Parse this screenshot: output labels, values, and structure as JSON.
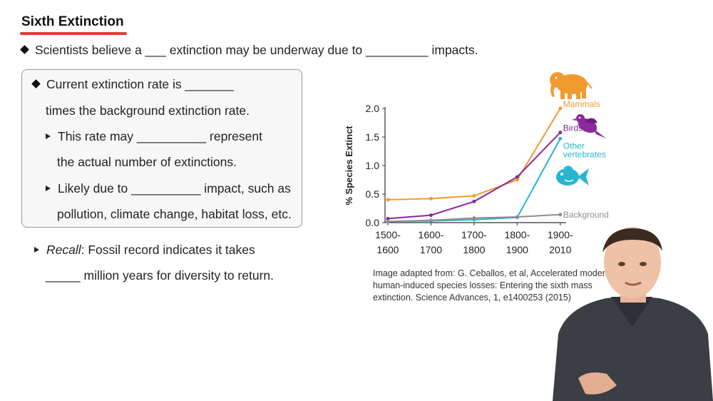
{
  "slide": {
    "title": "Sixth Extinction",
    "line1": "Scientists believe a ___ extinction may be underway due to _________ impacts.",
    "box": {
      "b1a": "Current extinction rate is _______",
      "b1b": "times the background extinction rate.",
      "s1a": "This rate may __________ represent",
      "s1b": "the actual number of extinctions.",
      "s2a": "Likely due to __________ impact, such as",
      "s2b": "pollution, climate change, habitat loss, etc."
    },
    "recall_label": "Recall",
    "recall_rest": ": Fossil record indicates it takes",
    "recall_line2": "_____ million years for diversity to return.",
    "caption": [
      "Image adapted from: G. Ceballos, et al, Accelerated modern",
      "human-induced species losses: Entering the sixth mass",
      "extinction. Science Advances, 1, e1400253 (2015)"
    ]
  },
  "chart_data": {
    "type": "line",
    "title": "",
    "xlabel": "",
    "ylabel": "% Species Extinct",
    "categories": [
      [
        "1500-",
        "1600"
      ],
      [
        "1600-",
        "1700"
      ],
      [
        "1700-",
        "1800"
      ],
      [
        "1800-",
        "1900"
      ],
      [
        "1900-",
        "2010"
      ]
    ],
    "ylim": [
      0,
      2.0
    ],
    "yticks": [
      "0.0",
      "0.5",
      "1.0",
      "1.5",
      "2.0"
    ],
    "series": [
      {
        "name": "Mammals",
        "label": "Mammals",
        "color": "#f39a2e",
        "values": [
          0.4,
          0.42,
          0.47,
          0.75,
          2.0
        ]
      },
      {
        "name": "Birds",
        "label": "Birds",
        "color": "#8a2a9c",
        "values": [
          0.07,
          0.13,
          0.37,
          0.8,
          1.58
        ]
      },
      {
        "name": "Other vertebrates",
        "label_lines": [
          "Other",
          "vertebrates"
        ],
        "color": "#27b5d0",
        "values": [
          0.02,
          0.03,
          0.05,
          0.09,
          1.47
        ]
      },
      {
        "name": "Background",
        "label": "Background",
        "color": "#8f8f8f",
        "values": [
          0.02,
          0.04,
          0.08,
          0.1,
          0.14
        ]
      }
    ]
  },
  "icons": {
    "mammal": "elephant-icon",
    "bird": "bird-icon",
    "fish": "fish-icon"
  }
}
